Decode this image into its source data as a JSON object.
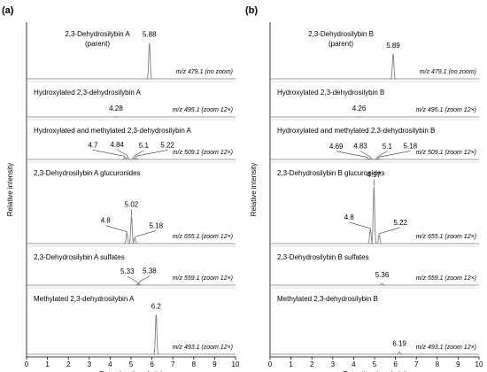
{
  "chart_data": [
    {
      "type": "line",
      "panel": "(a)",
      "xlabel": "Retention time (min)",
      "ylabel": "Relative intensity",
      "xlim": [
        0,
        10
      ],
      "xticks": [
        0,
        1,
        2,
        3,
        4,
        5,
        6,
        7,
        8,
        9,
        10
      ],
      "color": "#7f7f7f",
      "traces": [
        {
          "name": "2,3-Dehydrosilybin A",
          "subtitle": "(parent)",
          "mz_label": "m/z 479.1 (no zoom)",
          "peaks": {
            "x": [
              5.88
            ],
            "heights": [
              90
            ]
          }
        },
        {
          "name": "Hydroxylated 2,3-dehydrosilybin A",
          "mz_label": "m/z 495.1 (zoom 12×)",
          "peaks": {
            "x": [
              4.28
            ],
            "heights": [
              1
            ]
          }
        },
        {
          "name": "Hydroxylated and methylated 2,3-dehydrosilybin A",
          "mz_label": "m/z 509.1 (zoom 12×)",
          "peaks": {
            "x": [
              4.7,
              4.84,
              5.1,
              5.22
            ],
            "heights": [
              10,
              12,
              8,
              10
            ]
          }
        },
        {
          "name": "2,3-Dehydrosilybin A glucuronides",
          "mz_label": "m/z 655.1 (zoom 12×)",
          "peaks": {
            "x": [
              4.8,
              5.02,
              5.18
            ],
            "heights": [
              17,
              42,
              9
            ]
          }
        },
        {
          "name": "2,3-Dehydrosilybin A sulfates",
          "mz_label": "m/z 559.1 (zoom 12×)",
          "peaks": {
            "x": [
              5.33,
              5.38
            ],
            "heights": [
              8,
              10
            ]
          }
        },
        {
          "name": "Methylated 2,3-dehydrosilybin A",
          "mz_label": "m/z 493.1 (zoom 12×)",
          "peaks": {
            "x": [
              6.2
            ],
            "heights": [
              80
            ]
          }
        }
      ]
    },
    {
      "type": "line",
      "panel": "(b)",
      "xlabel": "Retention time (min)",
      "ylabel": "Relative intensity",
      "xlim": [
        0,
        10
      ],
      "xticks": [
        0,
        1,
        2,
        3,
        4,
        5,
        6,
        7,
        8,
        9,
        10
      ],
      "color": "#7f7f7f",
      "traces": [
        {
          "name": "2,3-Dehydrosilybin B",
          "subtitle": "(parent)",
          "mz_label": "m/z 479.1 (no zoom)",
          "peaks": {
            "x": [
              5.89
            ],
            "heights": [
              62
            ]
          }
        },
        {
          "name": "Hydroxylated 2,3-dehydrosilybin B",
          "mz_label": "m/z 495.1 (zoom 12×)",
          "peaks": {
            "x": [
              4.26
            ],
            "heights": [
              1
            ]
          }
        },
        {
          "name": "Hydroxylated and methylated 2,3-dehydrosilybin B",
          "mz_label": "m/z 509.1 (zoom 12×)",
          "peaks": {
            "x": [
              4.69,
              4.83,
              5.1,
              5.18
            ],
            "heights": [
              5,
              6,
              5,
              6
            ]
          }
        },
        {
          "name": "2,3-Dehydrosilybin B glucuronides",
          "mz_label": "m/z 655.1 (zoom 12×)",
          "peaks": {
            "x": [
              4.8,
              4.97,
              5.22
            ],
            "heights": [
              22,
              88,
              14
            ]
          }
        },
        {
          "name": "2,3-Dehydrosilybin B sulfates",
          "mz_label": "m/z 559.1 (zoom 12×)",
          "peaks": {
            "x": [
              5.36
            ],
            "heights": [
              8
            ]
          }
        },
        {
          "name": "Methylated 2,3-dehydrosilybin B",
          "mz_label": "m/z 493.1 (zoom 12×)",
          "peaks": {
            "x": [
              6.19
            ],
            "heights": [
              5
            ]
          }
        }
      ]
    }
  ]
}
